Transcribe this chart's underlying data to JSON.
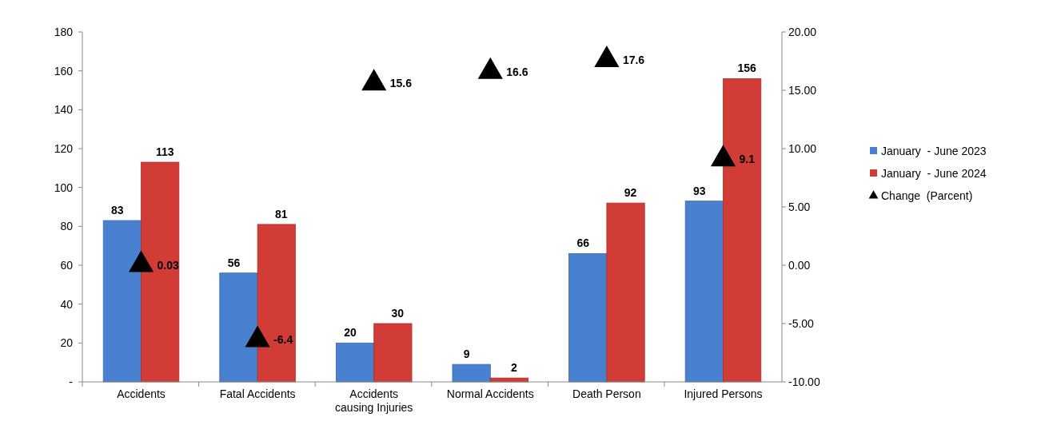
{
  "chart_data": {
    "type": "bar",
    "categories": [
      "Accidents",
      "Fatal Accidents",
      "Accidents causing Injuries",
      "Normal Accidents",
      "Death Person",
      "Injured Persons"
    ],
    "series": [
      {
        "name": "January  - June 2023",
        "color": "#4a80d0",
        "values": [
          83,
          56,
          20,
          9,
          66,
          93
        ]
      },
      {
        "name": "January  - June 2024",
        "color": "#d23c36",
        "values": [
          113,
          81,
          30,
          2,
          92,
          156
        ]
      },
      {
        "name": "Change  (Parcent)",
        "type": "scatter",
        "axis": "y2",
        "color": "#000000",
        "values": [
          0.03,
          -6.4,
          15.6,
          16.6,
          17.6,
          9.1
        ]
      }
    ],
    "ylim": [
      0,
      180
    ],
    "yticks": [
      {
        "value": 0,
        "label": "-"
      },
      20,
      40,
      60,
      80,
      100,
      120,
      140,
      160,
      180
    ],
    "y2lim": [
      -10,
      20
    ],
    "y2ticks": [
      {
        "value": -10,
        "label": "-10.00"
      },
      {
        "value": -5,
        "label": "-5.00"
      },
      {
        "value": 0,
        "label": "0.00"
      },
      {
        "value": 5,
        "label": "5.00"
      },
      {
        "value": 10,
        "label": "10.00"
      },
      {
        "value": 15,
        "label": "15.00"
      },
      {
        "value": 20,
        "label": "20.00"
      }
    ],
    "data_labels": true,
    "legend": "right",
    "grid": false,
    "marker": "triangle"
  }
}
